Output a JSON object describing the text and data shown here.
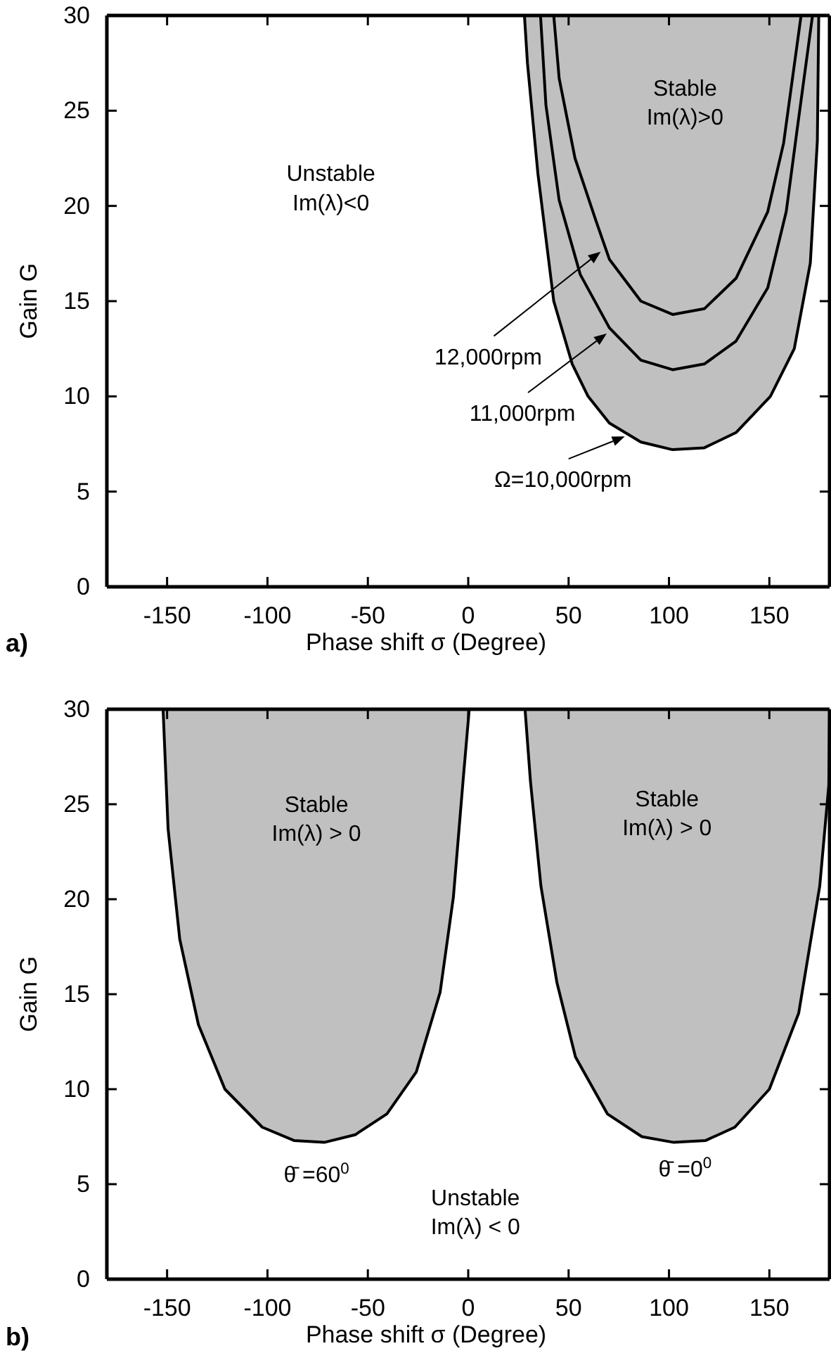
{
  "chart_data": [
    {
      "type": "line",
      "xlabel": "Phase shift σ (Degree)",
      "ylabel": "Gain G",
      "xlim": [
        -180,
        180
      ],
      "ylim": [
        0,
        30
      ],
      "xticks": [
        -150,
        -100,
        -50,
        0,
        50,
        100,
        150
      ],
      "yticks": [
        0,
        5,
        10,
        15,
        20,
        25,
        30
      ],
      "grid": false,
      "series": [
        {
          "type": "area",
          "color": "#c0c0c0",
          "x": [
            28,
            29.5,
            34.7,
            42.6,
            51.8,
            59.7,
            70.3,
            86,
            101.8,
            117.6,
            133.4,
            150.5,
            162.4,
            170.4,
            173.9,
            174.6
          ],
          "values": [
            30,
            27.5,
            21.7,
            15,
            11.7,
            10,
            8.6,
            7.6,
            7.2,
            7.3,
            8.1,
            10,
            12.5,
            17,
            23.4,
            30
          ]
        },
        {
          "color": "#000000",
          "x": [
            36,
            38.7,
            45.3,
            55.8,
            70.3,
            86,
            101.8,
            117.6,
            133.4,
            149.2,
            158.4,
            163.7,
            171.5
          ],
          "values": [
            30,
            25.3,
            20.3,
            16.4,
            13.6,
            11.9,
            11.4,
            11.7,
            12.9,
            15.7,
            19.7,
            23.9,
            30
          ]
        },
        {
          "color": "#000000",
          "x": [
            42.6,
            45.3,
            53.2,
            63.7,
            70.3,
            86,
            101.8,
            117.6,
            133.4,
            149.2,
            157.1,
            165.8
          ],
          "values": [
            30,
            26.7,
            22.5,
            19.2,
            17.2,
            15,
            14.3,
            14.6,
            16.2,
            19.7,
            23.3,
            30
          ]
        }
      ],
      "annotations": [
        "Unstable\nIm(λ)<0",
        "Stable\nIm(λ)>0",
        {
          "text": "12,000rpm",
          "x": 66,
          "y": 17.6
        },
        {
          "text": "11,000rpm",
          "x": 69,
          "y": 13.3
        },
        {
          "text": "Ω=10,000rpm",
          "x": 78,
          "y": 7.9
        },
        "a)"
      ]
    },
    {
      "type": "area",
      "xlabel": "Phase shift σ (Degree)",
      "ylabel": "Gain G",
      "xlim": [
        -180,
        180
      ],
      "ylim": [
        0,
        30
      ],
      "xticks": [
        -150,
        -100,
        -50,
        0,
        50,
        100,
        150
      ],
      "yticks": [
        0,
        5,
        10,
        15,
        20,
        25,
        30
      ],
      "grid": false,
      "series": [
        {
          "color": "#c0c0c0",
          "x": [
            -152,
            -149.5,
            -143.7,
            -134.4,
            -121.2,
            -102.6,
            -86.8,
            -71.7,
            -56.3,
            -40.5,
            -25.9,
            -14,
            -7.4,
            -2.6,
            0.5
          ],
          "values": [
            30,
            23.7,
            17.9,
            13.4,
            10,
            8,
            7.3,
            7.2,
            7.6,
            8.7,
            10.9,
            15.1,
            20.1,
            26.2,
            30
          ]
        },
        {
          "color": "#c0c0c0",
          "x": [
            28.3,
            31,
            36.2,
            44.2,
            53.4,
            69.3,
            86.5,
            102.4,
            118.3,
            132.8,
            150,
            164.6,
            175.1,
            179.6,
            180
          ],
          "values": [
            30,
            26.2,
            20.7,
            15.6,
            11.7,
            8.7,
            7.5,
            7.2,
            7.3,
            8,
            10,
            14,
            20.7,
            26,
            30
          ]
        }
      ],
      "annotations": [
        "Stable\nIm(λ) > 0",
        "Stable\nIm(λ) > 0",
        "θ̄ =60$^{0}$",
        "θ̄ =0$^{0}$",
        "Unstable\nIm(λ) < 0",
        "b)"
      ]
    }
  ]
}
